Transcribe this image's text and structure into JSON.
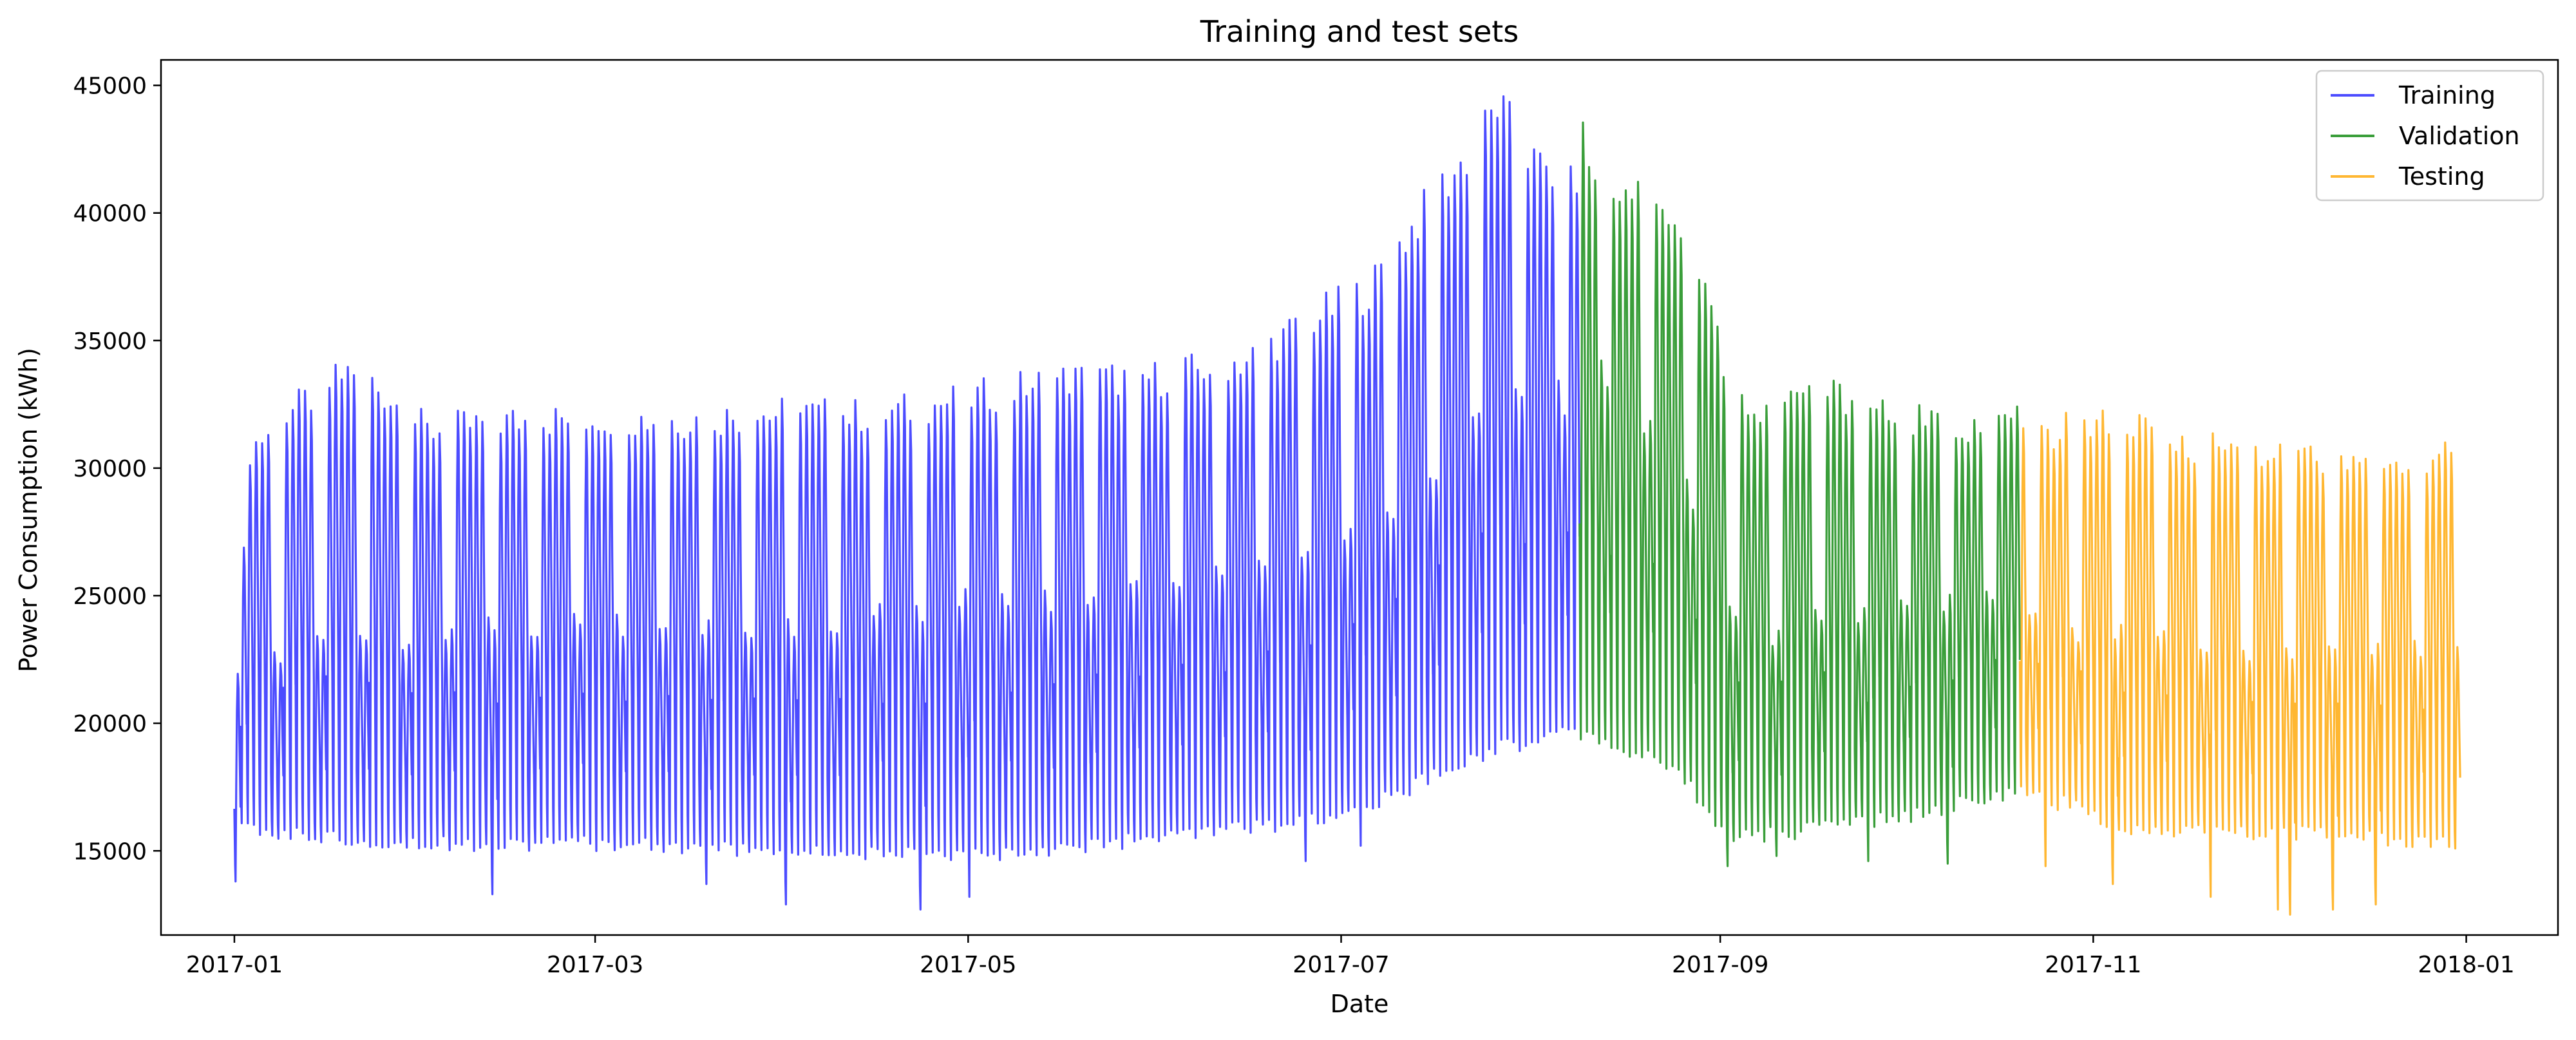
{
  "chart_data": {
    "type": "line",
    "title": "Training and test sets",
    "xlabel": "Date",
    "ylabel": "Power Consumption (kWh)",
    "xlim": [
      "2016-12-20",
      "2018-01-16"
    ],
    "ylim": [
      11700,
      46000
    ],
    "grid": false,
    "legend_position": "top-right",
    "x_ticks": [
      "2017-01",
      "2017-03",
      "2017-05",
      "2017-07",
      "2017-09",
      "2017-11",
      "2018-01"
    ],
    "y_ticks": [
      15000,
      20000,
      25000,
      30000,
      35000,
      40000,
      45000
    ],
    "resolution": "hourly",
    "series": [
      {
        "name": "Training",
        "color": "#4c4cff",
        "start": "2017-01-01",
        "end": "2017-08-09",
        "daily_peak": [
          [
            "2017-01-01",
            22100
          ],
          [
            "2017-01-03",
            30800
          ],
          [
            "2017-01-10",
            32300
          ],
          [
            "2017-01-20",
            34000
          ],
          [
            "2017-02-01",
            31500
          ],
          [
            "2017-02-15",
            31900
          ],
          [
            "2017-03-01",
            32000
          ],
          [
            "2017-03-15",
            31900
          ],
          [
            "2017-04-01",
            32200
          ],
          [
            "2017-04-15",
            32100
          ],
          [
            "2017-05-01",
            32800
          ],
          [
            "2017-05-15",
            33500
          ],
          [
            "2017-06-01",
            33600
          ],
          [
            "2017-06-15",
            34300
          ],
          [
            "2017-06-28",
            36200
          ],
          [
            "2017-07-05",
            37000
          ],
          [
            "2017-07-15",
            40500
          ],
          [
            "2017-07-22",
            42500
          ],
          [
            "2017-07-26",
            44300
          ],
          [
            "2017-08-01",
            42000
          ],
          [
            "2017-08-09",
            41000
          ]
        ],
        "daily_trough": [
          [
            "2017-01-01",
            15800
          ],
          [
            "2017-02-01",
            15300
          ],
          [
            "2017-03-01",
            15300
          ],
          [
            "2017-04-01",
            15000
          ],
          [
            "2017-05-01",
            14800
          ],
          [
            "2017-06-01",
            15500
          ],
          [
            "2017-06-28",
            16200
          ],
          [
            "2017-07-10",
            17200
          ],
          [
            "2017-07-25",
            19000
          ],
          [
            "2017-08-09",
            19700
          ]
        ],
        "weekend_peak": [
          [
            "2017-01-01",
            22500
          ],
          [
            "2017-02-01",
            23600
          ],
          [
            "2017-03-01",
            24000
          ],
          [
            "2017-04-01",
            23800
          ],
          [
            "2017-05-01",
            24800
          ],
          [
            "2017-06-01",
            25200
          ],
          [
            "2017-06-28",
            26800
          ],
          [
            "2017-07-15",
            29500
          ],
          [
            "2017-07-26",
            33500
          ],
          [
            "2017-08-09",
            32500
          ]
        ],
        "min_dips": [
          [
            "2017-01-01",
            13800
          ],
          [
            "2017-02-12",
            13300
          ],
          [
            "2017-03-19",
            13700
          ],
          [
            "2017-04-01",
            12900
          ],
          [
            "2017-04-23",
            12700
          ],
          [
            "2017-05-01",
            13200
          ],
          [
            "2017-06-25",
            14600
          ],
          [
            "2017-07-04",
            15200
          ]
        ]
      },
      {
        "name": "Validation",
        "color": "#3a9e3a",
        "start": "2017-08-09",
        "end": "2017-10-20",
        "daily_peak": [
          [
            "2017-08-09",
            42800
          ],
          [
            "2017-08-15",
            41000
          ],
          [
            "2017-08-20",
            41400
          ],
          [
            "2017-08-27",
            38600
          ],
          [
            "2017-09-02",
            33500
          ],
          [
            "2017-09-07",
            31800
          ],
          [
            "2017-09-15",
            33200
          ],
          [
            "2017-09-25",
            32500
          ],
          [
            "2017-10-05",
            31700
          ],
          [
            "2017-10-15",
            31800
          ],
          [
            "2017-10-20",
            32200
          ]
        ],
        "daily_trough": [
          [
            "2017-08-09",
            19500
          ],
          [
            "2017-08-25",
            18200
          ],
          [
            "2017-09-02",
            15500
          ],
          [
            "2017-09-15",
            15800
          ],
          [
            "2017-10-01",
            16400
          ],
          [
            "2017-10-20",
            17300
          ]
        ],
        "weekend_peak": [
          [
            "2017-08-09",
            34800
          ],
          [
            "2017-08-25",
            30000
          ],
          [
            "2017-09-05",
            23000
          ],
          [
            "2017-09-20",
            24500
          ],
          [
            "2017-10-20",
            24800
          ]
        ],
        "min_dips": [
          [
            "2017-09-02",
            14400
          ],
          [
            "2017-09-10",
            14800
          ],
          [
            "2017-09-25",
            14600
          ],
          [
            "2017-10-08",
            14500
          ]
        ]
      },
      {
        "name": "Testing",
        "color": "#ffb732",
        "start": "2017-10-20",
        "end": "2017-12-31",
        "daily_peak": [
          [
            "2017-10-20",
            31200
          ],
          [
            "2017-11-01",
            31800
          ],
          [
            "2017-11-07",
            31600
          ],
          [
            "2017-11-15",
            31000
          ],
          [
            "2017-12-01",
            30600
          ],
          [
            "2017-12-15",
            30300
          ],
          [
            "2017-12-30",
            30500
          ]
        ],
        "daily_trough": [
          [
            "2017-10-20",
            17500
          ],
          [
            "2017-11-05",
            16000
          ],
          [
            "2017-11-20",
            15700
          ],
          [
            "2017-12-05",
            15700
          ],
          [
            "2017-12-31",
            15200
          ]
        ],
        "weekend_peak": [
          [
            "2017-10-20",
            24000
          ],
          [
            "2017-11-10",
            23400
          ],
          [
            "2017-12-01",
            22600
          ],
          [
            "2017-12-31",
            22900
          ]
        ],
        "min_dips": [
          [
            "2017-10-24",
            14400
          ],
          [
            "2017-11-04",
            13700
          ],
          [
            "2017-11-20",
            13200
          ],
          [
            "2017-12-01",
            12700
          ],
          [
            "2017-12-03",
            12500
          ],
          [
            "2017-12-10",
            12700
          ],
          [
            "2017-12-17",
            12900
          ]
        ]
      }
    ]
  }
}
